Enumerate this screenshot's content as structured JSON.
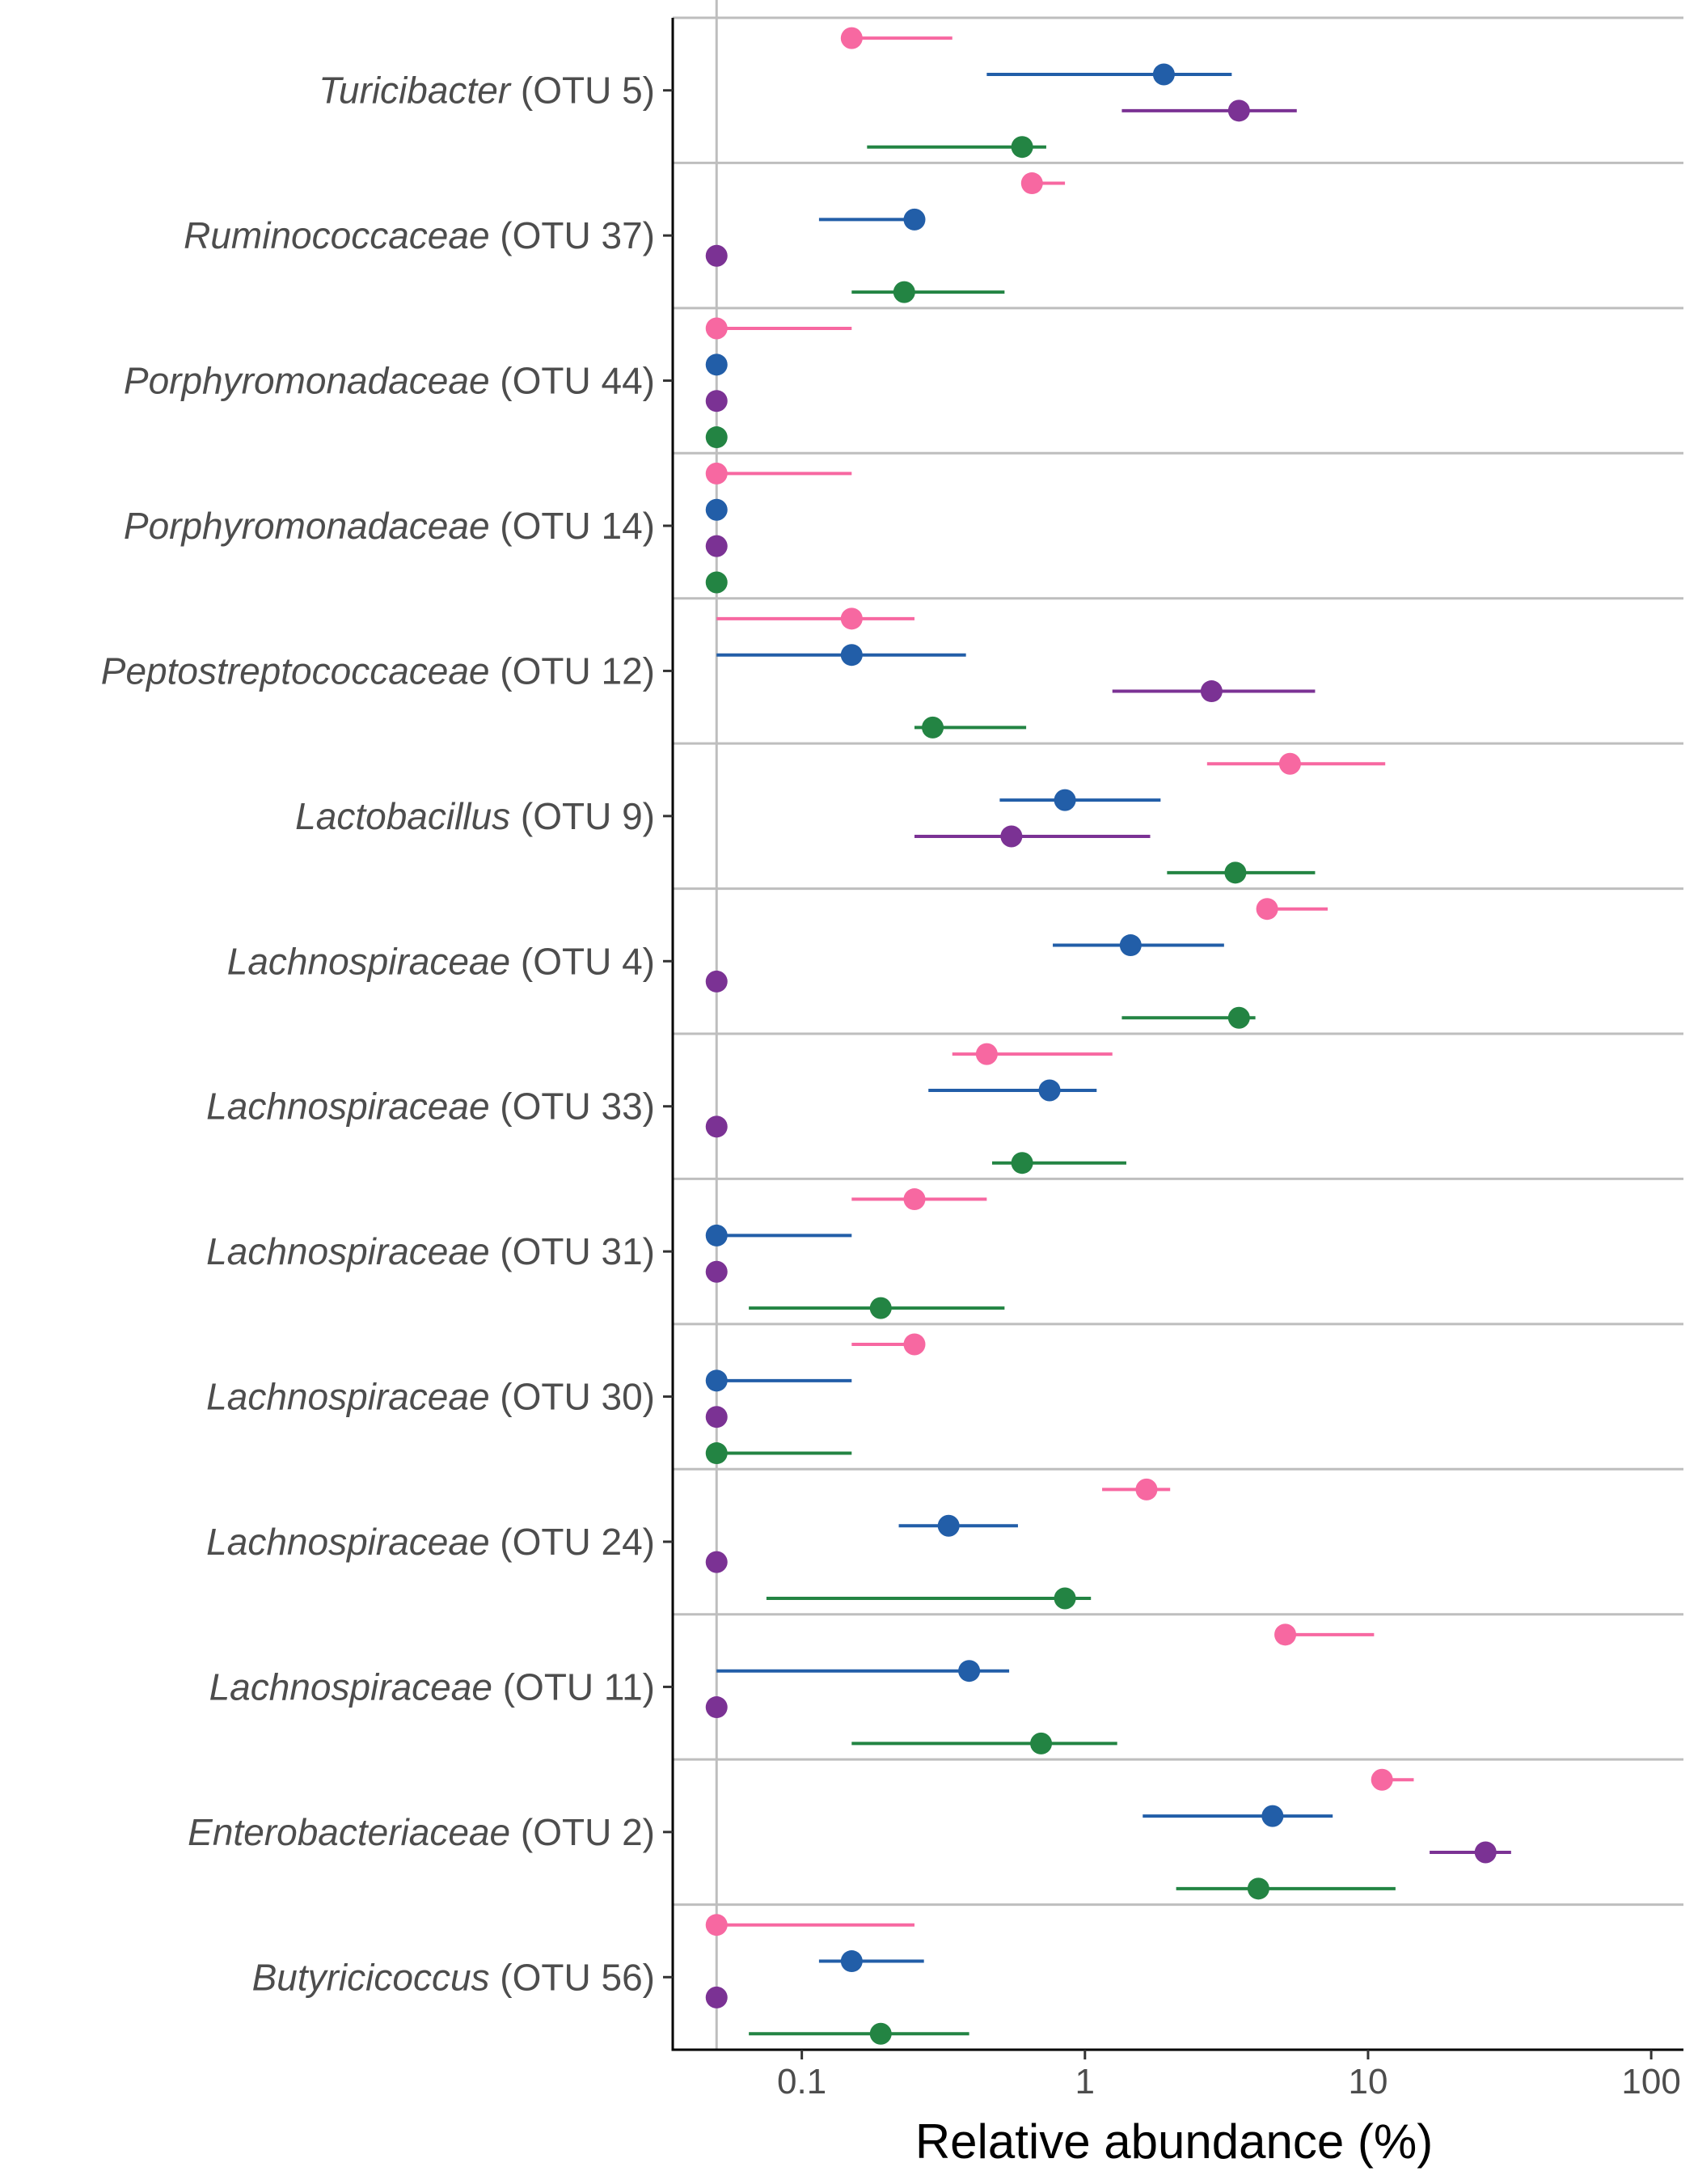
{
  "chart_data": {
    "type": "scatter",
    "x_scale": "log",
    "xlim": [
      0.035,
      130
    ],
    "x_ticks": [
      {
        "value": 0.1,
        "label": "0.1"
      },
      {
        "value": 1,
        "label": "1"
      },
      {
        "value": 10,
        "label": "10"
      },
      {
        "value": 100,
        "label": "100"
      }
    ],
    "xlabel": "Relative abundance (%)",
    "reference_line_x": 0.05,
    "grid": "horizontal-separators",
    "legend": "none",
    "series_colors": [
      "#f768a1",
      "#225ea8",
      "#7b3294",
      "#238443"
    ],
    "categories": [
      {
        "italic": "Turicibacter",
        "rest": " (OTU 5)",
        "points": [
          {
            "median": 0.15,
            "low": 0.15,
            "high": 0.34
          },
          {
            "median": 1.9,
            "low": 0.45,
            "high": 3.3
          },
          {
            "median": 3.5,
            "low": 1.35,
            "high": 5.6
          },
          {
            "median": 0.6,
            "low": 0.17,
            "high": 0.73
          }
        ]
      },
      {
        "italic": "Ruminococcaceae",
        "rest": " (OTU 37)",
        "points": [
          {
            "median": 0.65,
            "low": 0.65,
            "high": 0.85
          },
          {
            "median": 0.25,
            "low": 0.115,
            "high": 0.25
          },
          {
            "median": 0.05,
            "low": 0.05,
            "high": 0.05
          },
          {
            "median": 0.23,
            "low": 0.15,
            "high": 0.52
          }
        ]
      },
      {
        "italic": "Porphyromonadaceae",
        "rest": " (OTU 44)",
        "points": [
          {
            "median": 0.05,
            "low": 0.05,
            "high": 0.15
          },
          {
            "median": 0.05,
            "low": 0.05,
            "high": 0.05
          },
          {
            "median": 0.05,
            "low": 0.05,
            "high": 0.05
          },
          {
            "median": 0.05,
            "low": 0.05,
            "high": 0.05
          }
        ]
      },
      {
        "italic": "Porphyromonadaceae",
        "rest": " (OTU 14)",
        "points": [
          {
            "median": 0.05,
            "low": 0.05,
            "high": 0.15
          },
          {
            "median": 0.05,
            "low": 0.05,
            "high": 0.05
          },
          {
            "median": 0.05,
            "low": 0.05,
            "high": 0.05
          },
          {
            "median": 0.05,
            "low": 0.05,
            "high": 0.05
          }
        ]
      },
      {
        "italic": "Peptostreptococcaceae",
        "rest": " (OTU 12)",
        "points": [
          {
            "median": 0.15,
            "low": 0.05,
            "high": 0.25
          },
          {
            "median": 0.15,
            "low": 0.05,
            "high": 0.38
          },
          {
            "median": 2.8,
            "low": 1.25,
            "high": 6.5
          },
          {
            "median": 0.29,
            "low": 0.25,
            "high": 0.62
          }
        ]
      },
      {
        "italic": "Lactobacillus",
        "rest": " (OTU 9)",
        "points": [
          {
            "median": 5.3,
            "low": 2.7,
            "high": 11.5
          },
          {
            "median": 0.85,
            "low": 0.5,
            "high": 1.85
          },
          {
            "median": 0.55,
            "low": 0.25,
            "high": 1.7
          },
          {
            "median": 3.4,
            "low": 1.95,
            "high": 6.5
          }
        ]
      },
      {
        "italic": "Lachnospiraceae",
        "rest": " (OTU 4)",
        "points": [
          {
            "median": 4.4,
            "low": 4.4,
            "high": 7.2
          },
          {
            "median": 1.45,
            "low": 0.77,
            "high": 3.1
          },
          {
            "median": 0.05,
            "low": 0.05,
            "high": 0.05
          },
          {
            "median": 3.5,
            "low": 1.35,
            "high": 4.0
          }
        ]
      },
      {
        "italic": "Lachnospiraceae",
        "rest": " (OTU 33)",
        "points": [
          {
            "median": 0.45,
            "low": 0.34,
            "high": 1.25
          },
          {
            "median": 0.75,
            "low": 0.28,
            "high": 1.1
          },
          {
            "median": 0.05,
            "low": 0.05,
            "high": 0.05
          },
          {
            "median": 0.6,
            "low": 0.47,
            "high": 1.4
          }
        ]
      },
      {
        "italic": "Lachnospiraceae",
        "rest": " (OTU 31)",
        "points": [
          {
            "median": 0.25,
            "low": 0.15,
            "high": 0.45
          },
          {
            "median": 0.05,
            "low": 0.05,
            "high": 0.15
          },
          {
            "median": 0.05,
            "low": 0.05,
            "high": 0.05
          },
          {
            "median": 0.19,
            "low": 0.065,
            "high": 0.52
          }
        ]
      },
      {
        "italic": "Lachnospiraceae",
        "rest": " (OTU 30)",
        "points": [
          {
            "median": 0.25,
            "low": 0.15,
            "high": 0.25
          },
          {
            "median": 0.05,
            "low": 0.05,
            "high": 0.15
          },
          {
            "median": 0.05,
            "low": 0.05,
            "high": 0.05
          },
          {
            "median": 0.05,
            "low": 0.05,
            "high": 0.15
          }
        ]
      },
      {
        "italic": "Lachnospiraceae",
        "rest": " (OTU 24)",
        "points": [
          {
            "median": 1.65,
            "low": 1.15,
            "high": 2.0
          },
          {
            "median": 0.33,
            "low": 0.22,
            "high": 0.58
          },
          {
            "median": 0.05,
            "low": 0.05,
            "high": 0.05
          },
          {
            "median": 0.85,
            "low": 0.075,
            "high": 1.05
          }
        ]
      },
      {
        "italic": "Lachnospiraceae",
        "rest": " (OTU 11)",
        "points": [
          {
            "median": 5.1,
            "low": 5.1,
            "high": 10.5
          },
          {
            "median": 0.39,
            "low": 0.05,
            "high": 0.54
          },
          {
            "median": 0.05,
            "low": 0.05,
            "high": 0.05
          },
          {
            "median": 0.7,
            "low": 0.15,
            "high": 1.3
          }
        ]
      },
      {
        "italic": "Enterobacteriaceae",
        "rest": " (OTU 2)",
        "points": [
          {
            "median": 11.2,
            "low": 11.2,
            "high": 14.5
          },
          {
            "median": 4.6,
            "low": 1.6,
            "high": 7.5
          },
          {
            "median": 26.0,
            "low": 16.5,
            "high": 32.0
          },
          {
            "median": 4.1,
            "low": 2.1,
            "high": 12.5
          }
        ]
      },
      {
        "italic": "Butyricicoccus",
        "rest": " (OTU 56)",
        "points": [
          {
            "median": 0.05,
            "low": 0.05,
            "high": 0.25
          },
          {
            "median": 0.15,
            "low": 0.115,
            "high": 0.27
          },
          {
            "median": 0.05,
            "low": 0.05,
            "high": 0.05
          },
          {
            "median": 0.19,
            "low": 0.065,
            "high": 0.39
          }
        ]
      }
    ]
  }
}
